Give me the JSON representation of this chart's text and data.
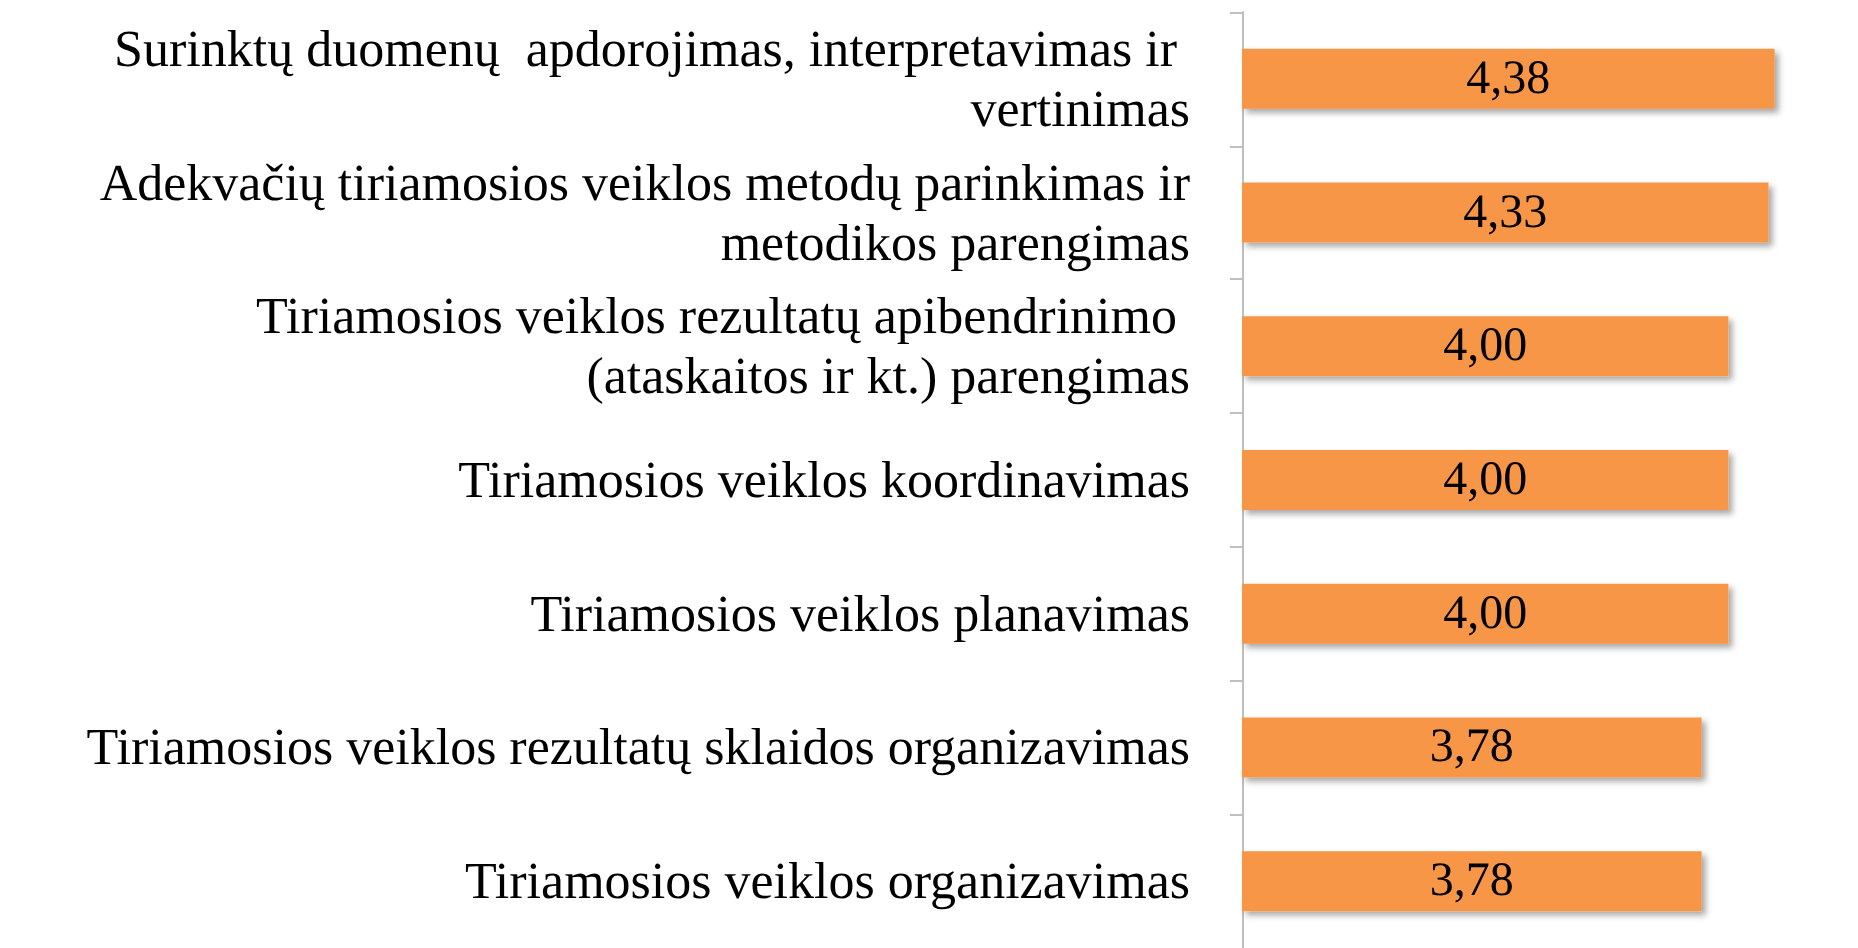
{
  "chart_data": {
    "type": "bar",
    "orientation": "horizontal",
    "categories": [
      "Surinktų duomenų  apdorojimas, interpretavimas ir vertinimas",
      "Adekvačių tiriamosios veiklos metodų parinkimas ir metodikos parengimas",
      "Tiriamosios veiklos rezultatų apibendrinimo (ataskaitos ir kt.) parengimas",
      "Tiriamosios veiklos koordinavimas",
      "Tiriamosios veiklos planavimas",
      "Tiriamosios veiklos rezultatų sklaidos organizavimas",
      "Tiriamosios veiklos organizavimas"
    ],
    "values": [
      4.38,
      4.33,
      4.0,
      4.0,
      4.0,
      3.78,
      3.78
    ],
    "value_labels": [
      "4,38",
      "4,33",
      "4,00",
      "4,00",
      "4,00",
      "3,78",
      "3,78"
    ],
    "color": "#f79646",
    "tick_labels": "y"
  }
}
